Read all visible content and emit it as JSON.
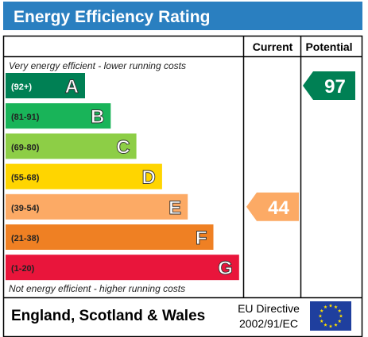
{
  "header": {
    "title": "Energy Efficiency Rating"
  },
  "table": {
    "current_header": "Current",
    "potential_header": "Potential",
    "top_note": "Very energy efficient - lower running costs",
    "bottom_note": "Not energy efficient - higher running costs"
  },
  "footer": {
    "region": "England, Scotland & Wales",
    "directive_line1": "EU Directive",
    "directive_line2": "2002/91/EC",
    "flag_icon": "eu-flag-icon"
  },
  "chart_data": {
    "type": "bar",
    "title": "Energy Efficiency Rating",
    "categories": [
      "A",
      "B",
      "C",
      "D",
      "E",
      "F",
      "G"
    ],
    "ranges": [
      "(92+)",
      "(81-91)",
      "(69-80)",
      "(55-68)",
      "(39-54)",
      "(21-38)",
      "(1-20)"
    ],
    "min_scores": [
      92,
      81,
      69,
      55,
      39,
      21,
      1
    ],
    "colors": [
      "#008054",
      "#19b459",
      "#8dce46",
      "#ffd500",
      "#fcaa65",
      "#ef8023",
      "#e9153b"
    ],
    "current": {
      "label": "Current",
      "value": 44,
      "band": "E",
      "color": "#fcaa65"
    },
    "potential": {
      "label": "Potential",
      "value": 97,
      "band": "A",
      "color": "#008054"
    }
  }
}
